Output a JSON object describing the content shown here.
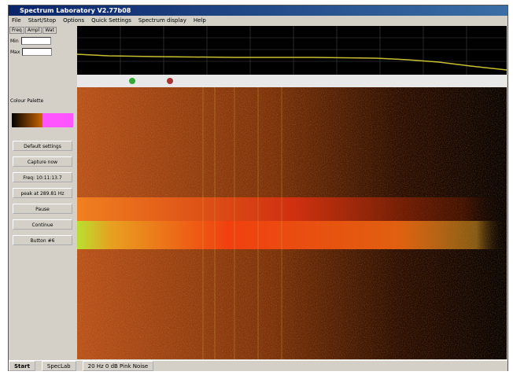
{
  "window": {
    "title": "Spectrum Laboratory V2.77b08"
  },
  "menu": [
    "File",
    "Start/Stop",
    "Options",
    "Quick Settings",
    "Spectrum display",
    "Help"
  ],
  "left_panel": {
    "tabs": [
      "Freq",
      "Ampl",
      "Wat"
    ],
    "fields": [
      "Min",
      "Max"
    ],
    "section": "Colour Palette"
  },
  "buttons": [
    "Default settings",
    "Capture now",
    "Freq: 10:11:13.7",
    "peak at 289.81 Hz",
    "Pause",
    "Continue",
    "Button #6"
  ],
  "taskbar": {
    "start": "Start",
    "items": [
      "SpecLab",
      "20 Hz 0 dB Pink Noise"
    ]
  }
}
